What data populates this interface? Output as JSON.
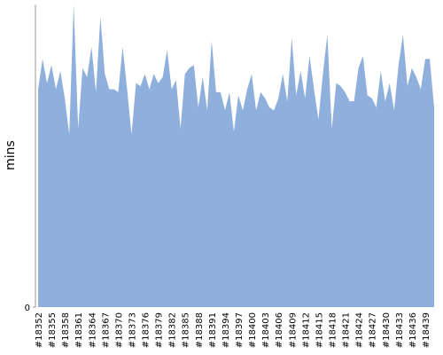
{
  "chart_data": {
    "type": "area",
    "ylabel": "mins",
    "categories": [
      "#18352",
      null,
      null,
      "#18355",
      null,
      null,
      "#18358",
      null,
      null,
      "#18361",
      null,
      null,
      "#18364",
      null,
      null,
      "#18367",
      null,
      null,
      "#18370",
      null,
      null,
      "#18373",
      null,
      null,
      "#18376",
      null,
      null,
      "#18379",
      null,
      null,
      "#18382",
      null,
      null,
      "#18385",
      null,
      null,
      "#18388",
      null,
      null,
      "#18391",
      null,
      null,
      "#18394",
      null,
      null,
      "#18397",
      null,
      null,
      "#18400",
      null,
      null,
      "#18403",
      null,
      null,
      "#18406",
      null,
      null,
      "#18409",
      null,
      null,
      "#18412",
      null,
      null,
      "#18415",
      null,
      null,
      "#18418",
      null,
      null,
      "#18421",
      null,
      null,
      "#18424",
      null,
      null,
      "#18427",
      null,
      null,
      "#18430",
      null,
      null,
      "#18433",
      null,
      null,
      "#18436",
      null,
      null,
      "#18439",
      null,
      null
    ],
    "values": [
      72,
      82,
      74,
      80,
      72,
      78,
      69,
      57,
      100,
      59,
      79,
      76,
      86,
      71,
      96,
      77,
      72,
      72,
      71,
      86,
      72,
      57,
      74,
      73,
      77,
      72,
      77,
      74,
      76,
      85,
      72,
      75,
      59,
      77,
      79,
      80,
      66,
      76,
      65,
      88,
      71,
      71,
      65,
      71,
      58,
      70,
      65,
      72,
      77,
      65,
      71,
      69,
      66,
      65,
      69,
      77,
      68,
      89,
      70,
      78,
      69,
      83,
      72,
      62,
      77,
      90,
      59,
      74,
      73,
      71,
      68,
      68,
      79,
      83,
      70,
      69,
      66,
      78,
      68,
      74,
      65,
      80,
      90,
      73,
      79,
      76,
      72,
      82,
      82,
      66
    ],
    "color": "#8fb0dc",
    "ylim": [
      0,
      100
    ],
    "yticks": [
      0
    ]
  }
}
